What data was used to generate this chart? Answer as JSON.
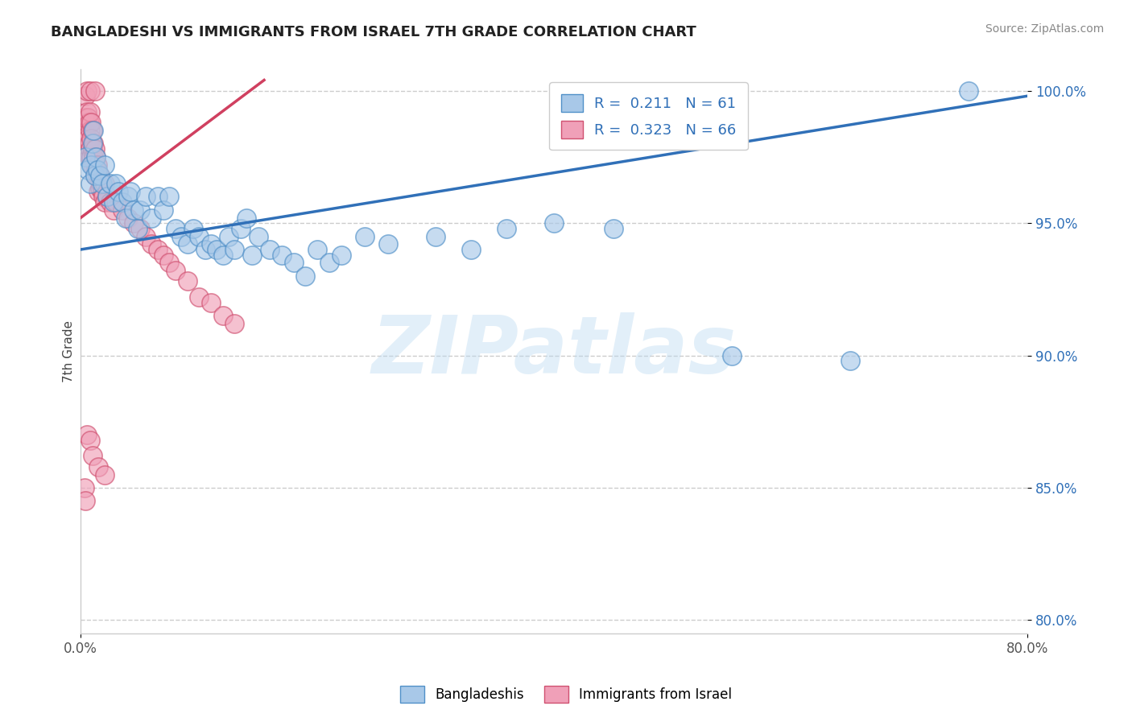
{
  "title": "BANGLADESHI VS IMMIGRANTS FROM ISRAEL 7TH GRADE CORRELATION CHART",
  "source": "Source: ZipAtlas.com",
  "ylabel": "7th Grade",
  "xlim": [
    0.0,
    0.8
  ],
  "ylim": [
    0.795,
    1.008
  ],
  "yticks": [
    0.8,
    0.85,
    0.9,
    0.95,
    1.0
  ],
  "ytick_labels": [
    "80.0%",
    "85.0%",
    "90.0%",
    "95.0%",
    "100.0%"
  ],
  "blue_R": 0.211,
  "blue_N": 61,
  "pink_R": 0.323,
  "pink_N": 66,
  "blue_color": "#A8C8E8",
  "pink_color": "#F0A0B8",
  "blue_edge_color": "#5090C8",
  "pink_edge_color": "#D05070",
  "blue_line_color": "#3070B8",
  "pink_line_color": "#D04060",
  "legend_label_blue": "Bangladeshis",
  "legend_label_pink": "Immigrants from Israel",
  "watermark": "ZIPatlas",
  "title_fontsize": 13,
  "blue_line_x": [
    0.0,
    0.8
  ],
  "blue_line_y": [
    0.94,
    0.998
  ],
  "pink_line_x": [
    0.0,
    0.155
  ],
  "pink_line_y": [
    0.952,
    1.004
  ],
  "blue_scatter_x": [
    0.004,
    0.006,
    0.008,
    0.009,
    0.01,
    0.011,
    0.012,
    0.013,
    0.014,
    0.016,
    0.018,
    0.02,
    0.022,
    0.025,
    0.028,
    0.03,
    0.032,
    0.035,
    0.038,
    0.04,
    0.042,
    0.045,
    0.048,
    0.05,
    0.055,
    0.06,
    0.065,
    0.07,
    0.075,
    0.08,
    0.085,
    0.09,
    0.095,
    0.1,
    0.105,
    0.11,
    0.115,
    0.12,
    0.125,
    0.13,
    0.135,
    0.14,
    0.145,
    0.15,
    0.16,
    0.17,
    0.18,
    0.19,
    0.2,
    0.21,
    0.22,
    0.24,
    0.26,
    0.3,
    0.33,
    0.36,
    0.4,
    0.45,
    0.55,
    0.65,
    0.75
  ],
  "blue_scatter_y": [
    0.975,
    0.97,
    0.965,
    0.972,
    0.98,
    0.985,
    0.968,
    0.975,
    0.97,
    0.968,
    0.965,
    0.972,
    0.96,
    0.965,
    0.958,
    0.965,
    0.962,
    0.958,
    0.952,
    0.96,
    0.962,
    0.955,
    0.948,
    0.955,
    0.96,
    0.952,
    0.96,
    0.955,
    0.96,
    0.948,
    0.945,
    0.942,
    0.948,
    0.945,
    0.94,
    0.942,
    0.94,
    0.938,
    0.945,
    0.94,
    0.948,
    0.952,
    0.938,
    0.945,
    0.94,
    0.938,
    0.935,
    0.93,
    0.94,
    0.935,
    0.938,
    0.945,
    0.942,
    0.945,
    0.94,
    0.948,
    0.95,
    0.948,
    0.9,
    0.898,
    1.0
  ],
  "pink_scatter_x": [
    0.003,
    0.004,
    0.004,
    0.005,
    0.005,
    0.006,
    0.006,
    0.007,
    0.007,
    0.007,
    0.008,
    0.008,
    0.008,
    0.009,
    0.009,
    0.009,
    0.01,
    0.01,
    0.01,
    0.011,
    0.011,
    0.012,
    0.012,
    0.012,
    0.013,
    0.013,
    0.014,
    0.014,
    0.015,
    0.015,
    0.016,
    0.016,
    0.017,
    0.018,
    0.019,
    0.02,
    0.02,
    0.022,
    0.025,
    0.028,
    0.03,
    0.035,
    0.04,
    0.045,
    0.05,
    0.055,
    0.06,
    0.065,
    0.07,
    0.075,
    0.08,
    0.09,
    0.1,
    0.11,
    0.12,
    0.13,
    0.005,
    0.008,
    0.012,
    0.005,
    0.008,
    0.01,
    0.015,
    0.02,
    0.003,
    0.004
  ],
  "pink_scatter_y": [
    0.99,
    0.985,
    0.998,
    0.988,
    0.992,
    0.99,
    0.982,
    0.988,
    0.98,
    0.975,
    0.992,
    0.985,
    0.978,
    0.988,
    0.982,
    0.975,
    0.985,
    0.978,
    0.972,
    0.98,
    0.975,
    0.978,
    0.972,
    0.968,
    0.975,
    0.97,
    0.972,
    0.968,
    0.968,
    0.962,
    0.968,
    0.963,
    0.965,
    0.962,
    0.96,
    0.958,
    0.965,
    0.96,
    0.958,
    0.955,
    0.958,
    0.955,
    0.952,
    0.95,
    0.948,
    0.945,
    0.942,
    0.94,
    0.938,
    0.935,
    0.932,
    0.928,
    0.922,
    0.92,
    0.915,
    0.912,
    1.0,
    1.0,
    1.0,
    0.87,
    0.868,
    0.862,
    0.858,
    0.855,
    0.85,
    0.845
  ]
}
